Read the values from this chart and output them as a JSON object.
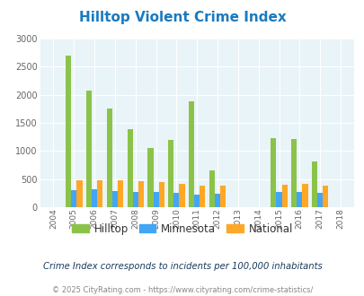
{
  "title": "Hilltop Violent Crime Index",
  "title_color": "#1a7abf",
  "subtitle": "Crime Index corresponds to incidents per 100,000 inhabitants",
  "footer": "© 2025 CityRating.com - https://www.cityrating.com/crime-statistics/",
  "years": [
    2004,
    2005,
    2006,
    2007,
    2008,
    2009,
    2010,
    2011,
    2012,
    2013,
    2014,
    2015,
    2016,
    2017,
    2018
  ],
  "hilltop": [
    0,
    2700,
    2080,
    1750,
    1380,
    1050,
    1190,
    1880,
    660,
    0,
    0,
    1230,
    1220,
    810,
    0
  ],
  "minnesota": [
    0,
    300,
    320,
    295,
    275,
    265,
    255,
    230,
    245,
    0,
    0,
    270,
    265,
    248,
    0
  ],
  "national": [
    0,
    480,
    480,
    480,
    460,
    440,
    415,
    390,
    390,
    0,
    0,
    395,
    415,
    390,
    0
  ],
  "hilltop_color": "#8bc34a",
  "minnesota_color": "#42a5f5",
  "national_color": "#ffa726",
  "bg_color": "#e8f4f8",
  "ylim": [
    0,
    3000
  ],
  "yticks": [
    0,
    500,
    1000,
    1500,
    2000,
    2500,
    3000
  ],
  "bar_width": 0.27,
  "legend_labels": [
    "Hilltop",
    "Minnesota",
    "National"
  ],
  "subtitle_color": "#1a3a5c",
  "footer_color": "#888888"
}
